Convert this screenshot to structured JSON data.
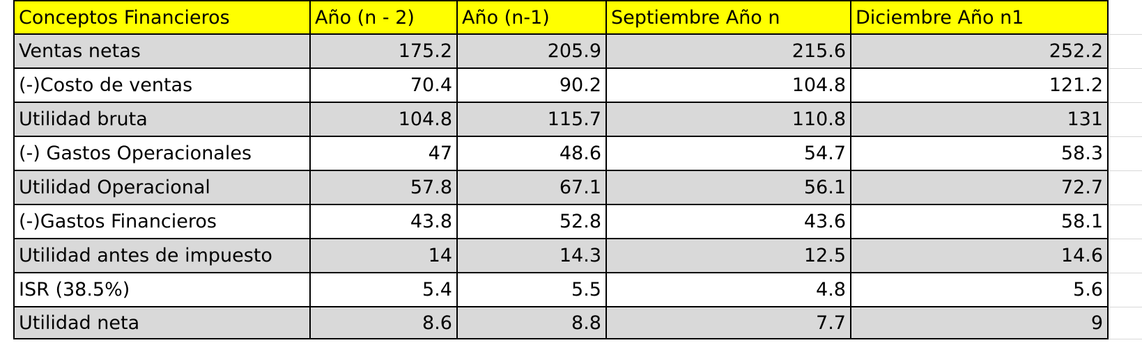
{
  "sheet": {
    "headers": [
      "Conceptos Financieros",
      "Año (n - 2)",
      "Año (n-1)",
      "Septiembre Año n",
      "Diciembre Año n1"
    ],
    "rows": [
      {
        "concept": "Ventas netas",
        "v1": "175.2",
        "v2": "205.9",
        "v3": "215.6",
        "v4": "252.2"
      },
      {
        "concept": "(-)Costo de ventas",
        "v1": "70.4",
        "v2": "90.2",
        "v3": "104.8",
        "v4": "121.2"
      },
      {
        "concept": "Utilidad bruta",
        "v1": "104.8",
        "v2": "115.7",
        "v3": "110.8",
        "v4": "131"
      },
      {
        "concept": "(-) Gastos Operacionales",
        "v1": "47",
        "v2": "48.6",
        "v3": "54.7",
        "v4": "58.3"
      },
      {
        "concept": "Utilidad Operacional",
        "v1": "57.8",
        "v2": "67.1",
        "v3": "56.1",
        "v4": "72.7"
      },
      {
        "concept": "(-)Gastos Financieros",
        "v1": "43.8",
        "v2": "52.8",
        "v3": "43.6",
        "v4": "58.1"
      },
      {
        "concept": "Utilidad antes de impuesto",
        "v1": "14",
        "v2": "14.3",
        "v3": "12.5",
        "v4": "14.6"
      },
      {
        "concept": "ISR (38.5%)",
        "v1": "5.4",
        "v2": "5.5",
        "v3": "4.8",
        "v4": "5.6"
      },
      {
        "concept": "Utilidad neta",
        "v1": "8.6",
        "v2": "8.8",
        "v3": "7.7",
        "v4": "9"
      }
    ]
  },
  "colors": {
    "header_fill": "#ffff00",
    "shaded_fill": "#d9d9d9",
    "plain_fill": "#ffffff",
    "border": "#000000"
  }
}
